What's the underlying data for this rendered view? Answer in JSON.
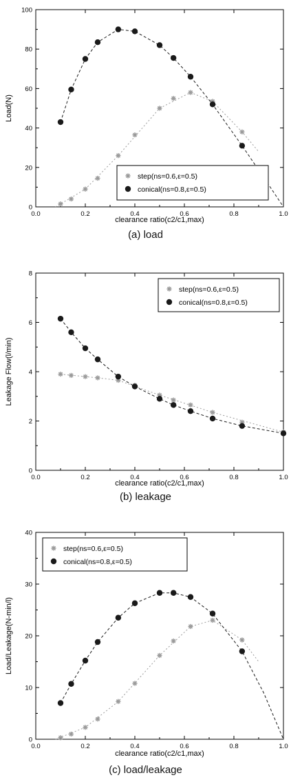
{
  "chart_data": [
    {
      "type": "scatter",
      "xlabel": "clearance ratio(c2/c1,max)",
      "ylabel": "Load(N)",
      "xlim": [
        0.0,
        1.0
      ],
      "ylim": [
        0,
        100
      ],
      "xticks": [
        0.0,
        0.2,
        0.4,
        0.6,
        0.8,
        1.0
      ],
      "yticks": [
        0,
        20,
        40,
        60,
        80,
        100
      ],
      "xtick_labels": [
        "0.0",
        "0.2",
        "0.4",
        "0.6",
        "0.8",
        "1.0"
      ],
      "ytick_labels": [
        "0",
        "20",
        "40",
        "60",
        "80",
        "100"
      ],
      "caption": "(a) load",
      "legend_position": "bottom-center",
      "series": [
        {
          "name": "step(ns=0.6,ε=0.5)",
          "marker": "star",
          "color": "#9a9a9a",
          "x": [
            0.1,
            0.143,
            0.2,
            0.25,
            0.333,
            0.4,
            0.5,
            0.556,
            0.625,
            0.714,
            0.833
          ],
          "y": [
            1.5,
            4,
            9,
            14.5,
            26,
            36.5,
            50,
            55,
            58,
            53.5,
            38
          ],
          "fit_x": [
            0.08,
            0.2,
            0.333,
            0.5,
            0.625,
            0.714,
            0.833,
            0.9
          ],
          "fit_y": [
            0,
            9,
            26,
            50,
            58,
            53.5,
            38,
            28
          ]
        },
        {
          "name": "conical(ns=0.8,ε=0.5)",
          "marker": "dot",
          "color": "#1a1a1a",
          "x": [
            0.1,
            0.143,
            0.2,
            0.25,
            0.333,
            0.4,
            0.5,
            0.556,
            0.625,
            0.714,
            0.833
          ],
          "y": [
            43,
            59.5,
            75,
            83.5,
            90,
            89,
            82,
            75.5,
            66,
            52,
            31
          ],
          "fit_x": [
            0.1,
            0.143,
            0.2,
            0.25,
            0.333,
            0.4,
            0.5,
            0.556,
            0.625,
            0.714,
            0.833,
            0.92,
            1.0
          ],
          "fit_y": [
            43,
            59.5,
            75,
            83.5,
            90,
            89,
            82,
            75.5,
            66,
            52,
            31,
            15,
            0
          ]
        }
      ]
    },
    {
      "type": "scatter",
      "xlabel": "clearance ratio(c2/c1,max)",
      "ylabel": "Leakage Flow(l/min)",
      "xlim": [
        0.0,
        1.0
      ],
      "ylim": [
        0,
        8
      ],
      "xticks": [
        0.0,
        0.2,
        0.4,
        0.6,
        0.8,
        1.0
      ],
      "yticks": [
        0,
        2,
        4,
        6,
        8
      ],
      "xtick_labels": [
        "0.0",
        "0.2",
        "0.4",
        "0.6",
        "0.8",
        "1.0"
      ],
      "ytick_labels": [
        "0",
        "2",
        "4",
        "6",
        "8"
      ],
      "caption": "(b) leakage",
      "legend_position": "top-right",
      "series": [
        {
          "name": "step(ns=0.6,ε=0.5)",
          "marker": "star",
          "color": "#9a9a9a",
          "x": [
            0.1,
            0.143,
            0.2,
            0.25,
            0.333,
            0.4,
            0.5,
            0.556,
            0.625,
            0.714,
            0.833,
            1.0
          ],
          "y": [
            3.9,
            3.85,
            3.8,
            3.75,
            3.65,
            3.45,
            3.05,
            2.85,
            2.65,
            2.35,
            1.95,
            1.55
          ],
          "fit_x": [
            0.1,
            0.25,
            0.333,
            0.5,
            0.714,
            1.0
          ],
          "fit_y": [
            3.9,
            3.75,
            3.65,
            3.05,
            2.35,
            1.55
          ]
        },
        {
          "name": "conical(ns=0.8,ε=0.5)",
          "marker": "dot",
          "color": "#1a1a1a",
          "x": [
            0.1,
            0.143,
            0.2,
            0.25,
            0.333,
            0.4,
            0.5,
            0.556,
            0.625,
            0.714,
            0.833,
            1.0
          ],
          "y": [
            6.15,
            5.6,
            4.95,
            4.5,
            3.8,
            3.4,
            2.9,
            2.65,
            2.4,
            2.1,
            1.8,
            1.5
          ],
          "fit_x": [
            0.1,
            0.143,
            0.2,
            0.25,
            0.333,
            0.4,
            0.5,
            0.556,
            0.625,
            0.714,
            0.833,
            1.0
          ],
          "fit_y": [
            6.15,
            5.6,
            4.95,
            4.5,
            3.8,
            3.4,
            2.9,
            2.65,
            2.4,
            2.1,
            1.8,
            1.5
          ]
        }
      ]
    },
    {
      "type": "scatter",
      "xlabel": "clearance ratio(c2/c1,max)",
      "ylabel": "Load/Leakage(N-min/l)",
      "xlim": [
        0.0,
        1.0
      ],
      "ylim": [
        0,
        40
      ],
      "xticks": [
        0.0,
        0.2,
        0.4,
        0.6,
        0.8,
        1.0
      ],
      "yticks": [
        0,
        10,
        20,
        30,
        40
      ],
      "xtick_labels": [
        "0.0",
        "0.2",
        "0.4",
        "0.6",
        "0.8",
        "1.0"
      ],
      "ytick_labels": [
        "0",
        "10",
        "20",
        "30",
        "40"
      ],
      "caption": "(c) load/leakage",
      "legend_position": "top-left",
      "series": [
        {
          "name": "step(ns=0.6,ε=0.5)",
          "marker": "star",
          "color": "#9a9a9a",
          "x": [
            0.1,
            0.143,
            0.2,
            0.25,
            0.333,
            0.4,
            0.5,
            0.556,
            0.625,
            0.714,
            0.833
          ],
          "y": [
            0.3,
            1,
            2.3,
            3.9,
            7.3,
            10.8,
            16.2,
            19,
            21.8,
            23,
            19.2
          ],
          "fit_x": [
            0.08,
            0.2,
            0.333,
            0.5,
            0.625,
            0.714,
            0.833,
            0.9
          ],
          "fit_y": [
            0,
            2.3,
            7.3,
            16.2,
            21.8,
            23,
            19.2,
            15
          ]
        },
        {
          "name": "conical(ns=0.8,ε=0.5)",
          "marker": "dot",
          "color": "#1a1a1a",
          "x": [
            0.1,
            0.143,
            0.2,
            0.25,
            0.333,
            0.4,
            0.5,
            0.556,
            0.625,
            0.714,
            0.833
          ],
          "y": [
            7,
            10.7,
            15.2,
            18.8,
            23.5,
            26.3,
            28.3,
            28.3,
            27.5,
            24.3,
            17
          ],
          "fit_x": [
            0.1,
            0.143,
            0.2,
            0.25,
            0.333,
            0.4,
            0.5,
            0.556,
            0.625,
            0.714,
            0.833,
            0.92,
            1.0
          ],
          "fit_y": [
            7,
            10.7,
            15.2,
            18.8,
            23.5,
            26.3,
            28.3,
            28.3,
            27.5,
            24.3,
            17,
            9,
            0
          ]
        }
      ]
    }
  ]
}
